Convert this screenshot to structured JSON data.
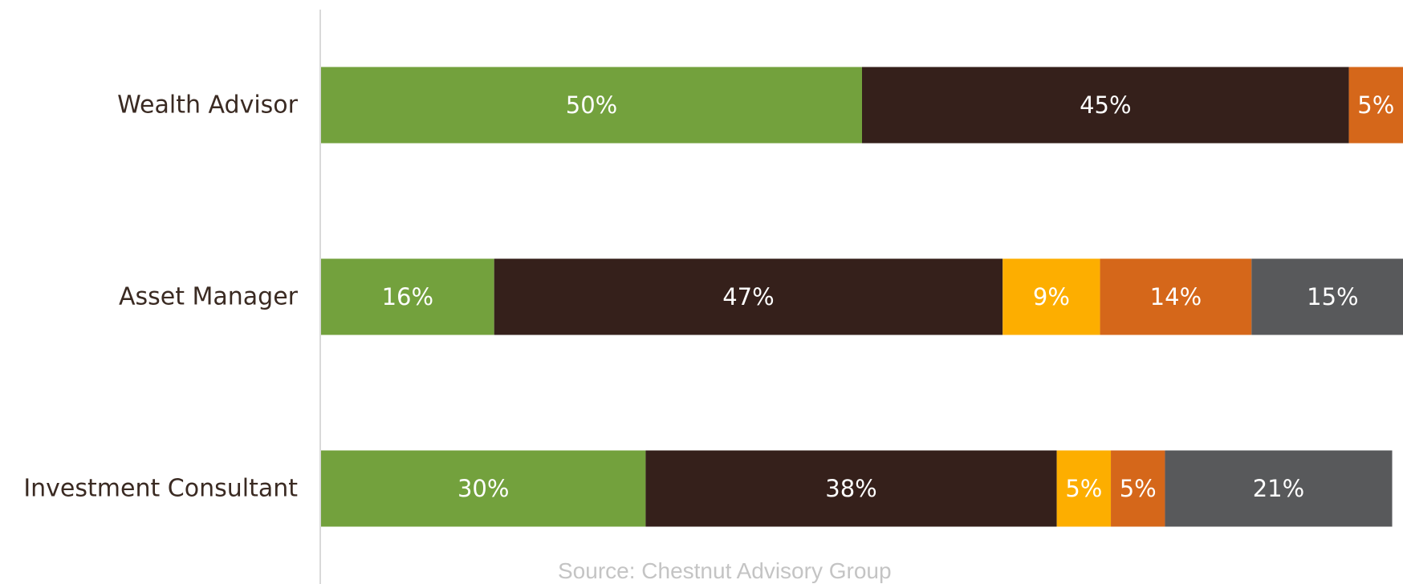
{
  "chart_data": {
    "type": "bar",
    "orientation": "horizontal",
    "stacked": true,
    "categories": [
      "Wealth Advisor",
      "Asset Manager",
      "Investment Consultant"
    ],
    "series": [
      {
        "color": "#73a13d",
        "values": [
          50,
          16,
          30
        ]
      },
      {
        "color": "#35201b",
        "values": [
          45,
          47,
          38
        ]
      },
      {
        "color": "#fdae00",
        "values": [
          0,
          9,
          5
        ]
      },
      {
        "color": "#d5671a",
        "values": [
          5,
          14,
          5
        ]
      },
      {
        "color": "#58595b",
        "values": [
          0,
          15,
          21
        ]
      }
    ],
    "data_labels": [
      [
        "50%",
        "45%",
        "",
        "5%",
        ""
      ],
      [
        "16%",
        "47%",
        "9%",
        "14%",
        "15%"
      ],
      [
        "30%",
        "38%",
        "5%",
        "5%",
        "21%"
      ]
    ],
    "xlim": [
      0,
      100
    ],
    "grid": false,
    "legend": "none",
    "source": "Source: Chestnut Advisory Group"
  }
}
